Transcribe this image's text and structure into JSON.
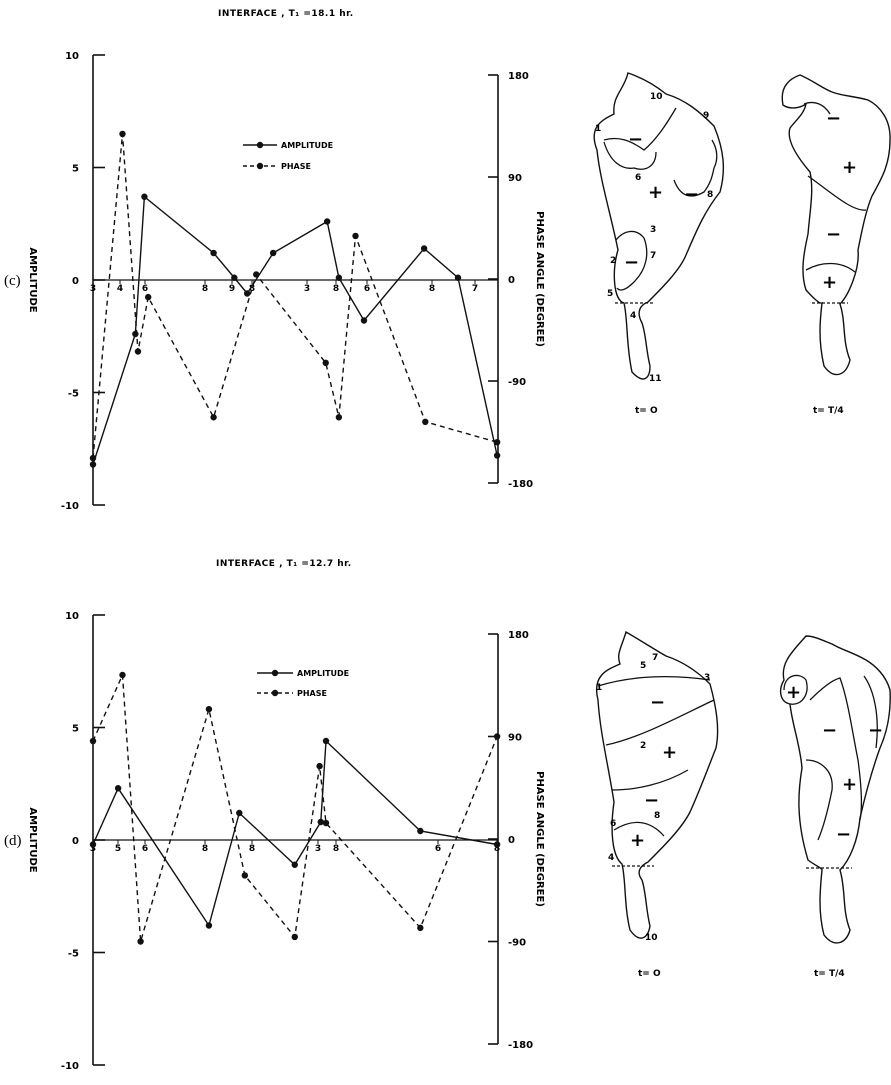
{
  "chart_data": [
    {
      "type": "line",
      "panel_label": "(c)",
      "title": "INTERFACE , T₁ =18.1 hr.",
      "ylabel": "AMPLITUDE",
      "ylabel_right": "PHASE ANGLE (DEGREE)",
      "ylim": [
        -10,
        10
      ],
      "ylim_right": [
        -180,
        180
      ],
      "yticks": [
        "10",
        "5",
        "0",
        "-5",
        "-10"
      ],
      "yticks_right": [
        "180",
        "90",
        "0",
        "-90",
        "-180"
      ],
      "x_markers": [
        "3",
        "4",
        "6",
        "8",
        "9",
        "8",
        "3",
        "8",
        "6",
        "8",
        "7"
      ],
      "series": [
        {
          "name": "AMPLITUDE",
          "style": "solid",
          "x": [
            0,
            0.145,
            0.176,
            0.413,
            0.484,
            0.528,
            0.617,
            0.802,
            0.842,
            0.928,
            1.134,
            1.25,
            1.384
          ],
          "y": [
            -8.2,
            -2.4,
            3.7,
            1.2,
            0.1,
            -0.6,
            1.2,
            2.6,
            0.1,
            -1.8,
            1.4,
            0.1,
            -7.8
          ]
        },
        {
          "name": "PHASE",
          "style": "dashed",
          "x": [
            0,
            0.101,
            0.154,
            0.189,
            0.413,
            0.559,
            0.797,
            0.842,
            0.899,
            1.138,
            1.384
          ],
          "y": [
            -158,
            128,
            -64,
            -16,
            -122,
            4,
            -74,
            -122,
            38,
            -126,
            -144
          ]
        }
      ],
      "maps": [
        {
          "label": "t= O",
          "signs": [
            "−",
            "+",
            "−",
            "−"
          ],
          "points": [
            "10",
            "9",
            "1",
            "6",
            "8",
            "2",
            "3",
            "7",
            "5",
            "4",
            "11"
          ]
        },
        {
          "label": "t= T/4",
          "signs": [
            "−",
            "+",
            "−",
            "+"
          ]
        }
      ]
    },
    {
      "type": "line",
      "panel_label": "(d)",
      "title": "INTERFACE , T₁ =12.7 hr.",
      "ylabel": "AMPLITUDE",
      "ylabel_right": "PHASE ANGLE (DEGREE)",
      "ylim": [
        -10,
        10
      ],
      "ylim_right": [
        -180,
        180
      ],
      "yticks": [
        "10",
        "5",
        "0",
        "-5",
        "-10"
      ],
      "yticks_right": [
        "180",
        "90",
        "0",
        "-90",
        "-180"
      ],
      "x_markers": [
        "3",
        "5",
        "6",
        "8",
        "8",
        "3",
        "8",
        "6",
        "8"
      ],
      "series": [
        {
          "name": "AMPLITUDE",
          "style": "solid",
          "x": [
            0,
            0.086,
            0.397,
            0.501,
            0.691,
            0.78,
            0.798,
            1.121,
            1.384
          ],
          "y": [
            -0.2,
            2.3,
            -3.8,
            1.2,
            -1.1,
            0.8,
            4.4,
            0.4,
            -0.2
          ]
        },
        {
          "name": "PHASE",
          "style": "dashed",
          "x": [
            0,
            0.101,
            0.163,
            0.397,
            0.52,
            0.691,
            0.776,
            0.798,
            1.121,
            1.384
          ],
          "y": [
            86,
            144,
            -90,
            114,
            -32,
            -86,
            64,
            14,
            -78,
            90
          ]
        }
      ],
      "maps": [
        {
          "label": "t= O",
          "signs": [
            "−",
            "+",
            "−",
            "+"
          ],
          "points": [
            "5",
            "7",
            "1",
            "3",
            "2",
            "6",
            "8",
            "4",
            "10"
          ]
        },
        {
          "label": "t= T/4",
          "signs": [
            "+",
            "−",
            "−",
            "+",
            "−"
          ]
        }
      ]
    }
  ],
  "legend": {
    "amplitude": "AMPLITUDE",
    "phase": "PHASE"
  },
  "colors": {
    "ink": "#111111",
    "background": "#ffffff"
  }
}
